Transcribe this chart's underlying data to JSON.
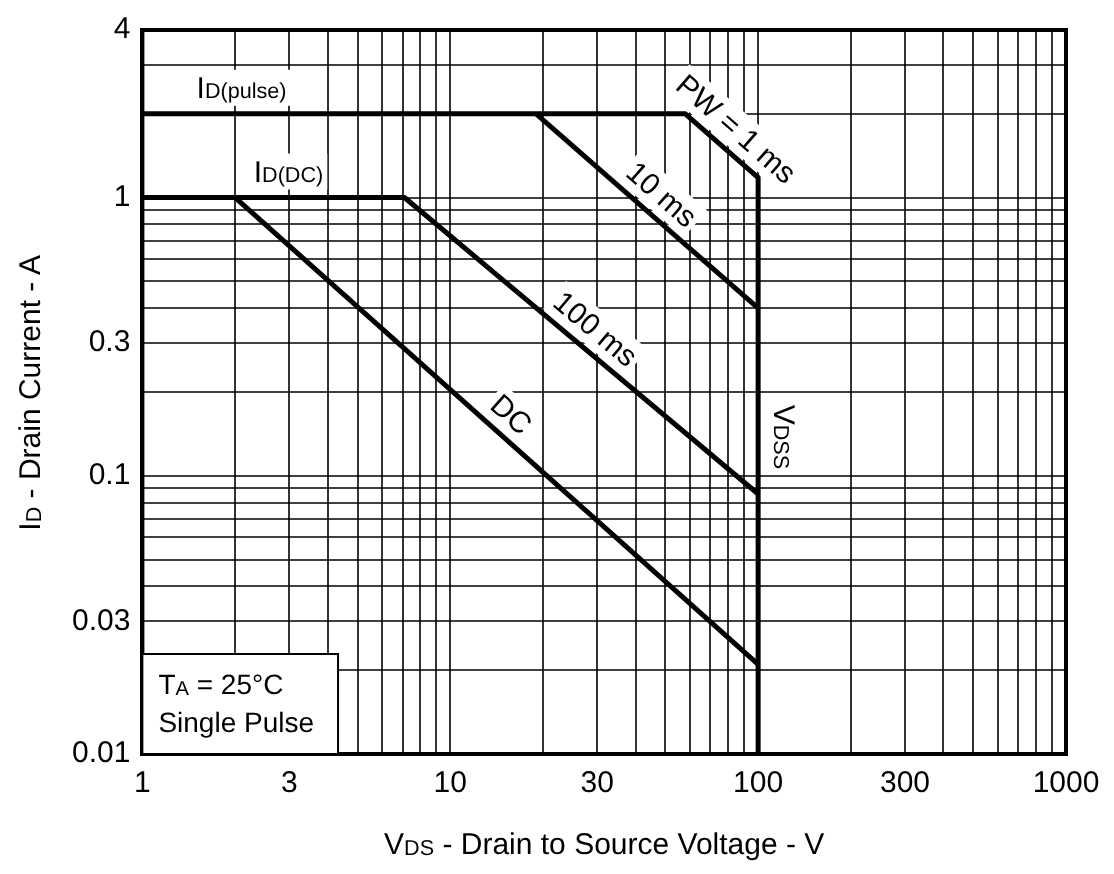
{
  "chart_data": {
    "type": "line",
    "xlabel": "V$_{DS}$ - Drain to Source Voltage - V",
    "ylabel": "I$_{D}$ - Drain Current - A",
    "log": "xy",
    "grid": true,
    "legend": false,
    "marker": "none",
    "line_style": "solid",
    "xlim": [
      1,
      1000
    ],
    "ylim": [
      0.01,
      4
    ],
    "xticks": [
      1,
      {
        "value": 2,
        "label": null
      },
      3,
      {
        "value": 4,
        "label": null
      },
      {
        "value": 5,
        "label": null
      },
      {
        "value": 6,
        "label": null
      },
      {
        "value": 7,
        "label": null
      },
      {
        "value": 8,
        "label": null
      },
      {
        "value": 9,
        "label": null
      },
      10,
      {
        "value": 20,
        "label": null
      },
      30,
      {
        "value": 40,
        "label": null
      },
      {
        "value": 50,
        "label": null
      },
      {
        "value": 60,
        "label": null
      },
      {
        "value": 70,
        "label": null
      },
      {
        "value": 80,
        "label": null
      },
      {
        "value": 90,
        "label": null
      },
      100,
      {
        "value": 200,
        "label": null
      },
      300,
      {
        "value": 400,
        "label": null
      },
      {
        "value": 500,
        "label": null
      },
      {
        "value": 600,
        "label": null
      },
      {
        "value": 700,
        "label": null
      },
      {
        "value": 800,
        "label": null
      },
      {
        "value": 900,
        "label": null
      },
      1000
    ],
    "yticks": [
      0.01,
      {
        "value": 0.02,
        "label": null
      },
      0.03,
      {
        "value": 0.04,
        "label": null
      },
      {
        "value": 0.05,
        "label": null
      },
      {
        "value": 0.06,
        "label": null
      },
      {
        "value": 0.07,
        "label": null
      },
      {
        "value": 0.08,
        "label": null
      },
      {
        "value": 0.09,
        "label": null
      },
      0.1,
      {
        "value": 0.2,
        "label": null
      },
      0.3,
      {
        "value": 0.4,
        "label": null
      },
      {
        "value": 0.5,
        "label": null
      },
      {
        "value": 0.6,
        "label": null
      },
      {
        "value": 0.7,
        "label": null
      },
      {
        "value": 0.8,
        "label": null
      },
      {
        "value": 0.9,
        "label": null
      },
      1,
      {
        "value": 2,
        "label": null
      },
      {
        "value": 3,
        "label": null
      },
      4
    ],
    "series": [
      {
        "name": "PW = 1 ms",
        "color": "#000000",
        "x": [
          1,
          58,
          100
        ],
        "values": [
          2,
          2,
          1.18
        ]
      },
      {
        "name": "10 ms",
        "color": "#000000",
        "x": [
          19,
          100
        ],
        "values": [
          2,
          0.4
        ]
      },
      {
        "name": "100 ms",
        "color": "#000000",
        "x": [
          1,
          7.1,
          100
        ],
        "values": [
          1,
          1,
          0.086
        ]
      },
      {
        "name": "DC",
        "color": "#000000",
        "x": [
          2,
          100
        ],
        "values": [
          1,
          0.021
        ]
      },
      {
        "name": "V$_{DSS}$",
        "color": "#000000",
        "x": [
          100,
          100
        ],
        "values": [
          1.18,
          0.01
        ]
      }
    ],
    "annotations": [
      {
        "text": "I$_{D(pulse)}$",
        "x": 1.5,
        "y": 2
      },
      {
        "text": "I$_{D(DC)}$",
        "x": 2.3,
        "y": 1
      },
      "T$_{A}$ = 25°C\nSingle Pulse"
    ]
  }
}
